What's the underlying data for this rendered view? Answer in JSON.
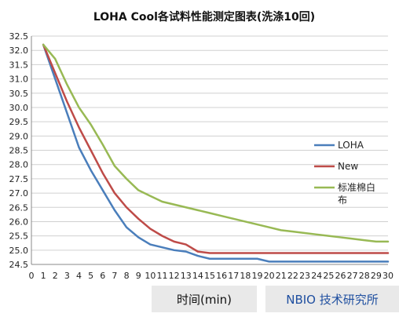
{
  "chart_data": {
    "type": "line",
    "title": "LOHA Cool各试料性能测定图表(洗涤10回)",
    "xlabel": "时间(min)",
    "ylabel": "",
    "x": [
      1,
      2,
      3,
      4,
      5,
      6,
      7,
      8,
      9,
      10,
      11,
      12,
      13,
      14,
      15,
      16,
      17,
      18,
      19,
      20,
      21,
      22,
      23,
      24,
      25,
      26,
      27,
      28,
      29,
      30
    ],
    "xlim": [
      0,
      30
    ],
    "ylim": [
      24.5,
      32.5
    ],
    "yticks": [
      "24.5",
      "25.0",
      "25.5",
      "26.0",
      "26.5",
      "27.0",
      "27.5",
      "28.0",
      "28.5",
      "29.0",
      "29.5",
      "30.0",
      "30.5",
      "31.0",
      "31.5",
      "32.0",
      "32.5"
    ],
    "xticks": [
      "0",
      "1",
      "2",
      "3",
      "4",
      "5",
      "6",
      "7",
      "8",
      "9",
      "10",
      "11",
      "12",
      "13",
      "14",
      "15",
      "16",
      "17",
      "18",
      "19",
      "20",
      "21",
      "22",
      "23",
      "24",
      "25",
      "26",
      "27",
      "28",
      "29",
      "30"
    ],
    "grid": true,
    "legend_position": "right",
    "series": [
      {
        "name": "LOHA",
        "color": "#4a7ebb",
        "values": [
          32.2,
          31.0,
          29.8,
          28.6,
          27.8,
          27.1,
          26.4,
          25.8,
          25.45,
          25.2,
          25.1,
          25.0,
          24.95,
          24.8,
          24.7,
          24.7,
          24.7,
          24.7,
          24.7,
          24.6,
          24.6,
          24.6,
          24.6,
          24.6,
          24.6,
          24.6,
          24.6,
          24.6,
          24.6,
          24.6
        ]
      },
      {
        "name": "New",
        "color": "#be4b48",
        "values": [
          32.2,
          31.2,
          30.2,
          29.3,
          28.5,
          27.7,
          27.0,
          26.5,
          26.1,
          25.75,
          25.5,
          25.3,
          25.2,
          24.95,
          24.9,
          24.9,
          24.9,
          24.9,
          24.9,
          24.9,
          24.9,
          24.9,
          24.9,
          24.9,
          24.9,
          24.9,
          24.9,
          24.9,
          24.9,
          24.9
        ]
      },
      {
        "name": "标准棉白布",
        "color": "#98b954",
        "values": [
          32.2,
          31.7,
          30.8,
          30.0,
          29.4,
          28.7,
          27.95,
          27.5,
          27.1,
          26.9,
          26.7,
          26.6,
          26.5,
          26.4,
          26.3,
          26.2,
          26.1,
          26.0,
          25.9,
          25.8,
          25.7,
          25.65,
          25.6,
          25.55,
          25.5,
          25.45,
          25.4,
          25.35,
          25.3,
          25.3
        ]
      }
    ]
  },
  "footer": {
    "xlabel_box": "时间(min)",
    "brand_text": "NBIO 技术研究所"
  }
}
